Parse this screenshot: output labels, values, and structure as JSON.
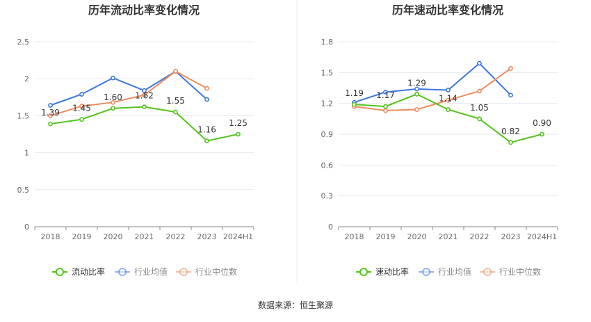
{
  "source_label": "数据来源：恒生聚源",
  "colors": {
    "series_main": "#52c41a",
    "series_avg": "#3b77e3",
    "series_median": "#f08a5d",
    "axis_text": "#666666",
    "grid": "#e6e9f0",
    "axis_line": "#888888",
    "divider": "#eeeeee"
  },
  "chart_data": [
    {
      "type": "line",
      "title": "历年流动比率变化情况",
      "categories": [
        "2018",
        "2019",
        "2020",
        "2021",
        "2022",
        "2023",
        "2024H1"
      ],
      "ylim": [
        0,
        2.5
      ],
      "yticks": [
        "0",
        "0.5",
        "1",
        "1.5",
        "2",
        "2.5"
      ],
      "yticks_values": [
        0,
        0.5,
        1,
        1.5,
        2,
        2.5
      ],
      "grid": true,
      "legend_position": "bottom",
      "series": [
        {
          "name": "流动比率",
          "values": [
            1.39,
            1.45,
            1.6,
            1.62,
            1.55,
            1.16,
            1.25
          ],
          "labels": [
            "1.39",
            "1.45",
            "1.60",
            "1.62",
            "1.55",
            "1.16",
            "1.25"
          ],
          "color_key": "series_main"
        },
        {
          "name": "行业均值",
          "values": [
            1.64,
            1.79,
            2.01,
            1.84,
            2.1,
            1.72,
            null
          ],
          "color_key": "series_avg"
        },
        {
          "name": "行业中位数",
          "values": [
            1.5,
            1.63,
            1.68,
            1.78,
            2.1,
            1.87,
            null
          ],
          "color_key": "series_median"
        }
      ]
    },
    {
      "type": "line",
      "title": "历年速动比率变化情况",
      "categories": [
        "2018",
        "2019",
        "2020",
        "2021",
        "2022",
        "2023",
        "2024H1"
      ],
      "ylim": [
        0,
        1.8
      ],
      "yticks": [
        "0",
        "0.3",
        "0.6",
        "0.9",
        "1.2",
        "1.5",
        "1.8"
      ],
      "yticks_values": [
        0,
        0.3,
        0.6,
        0.9,
        1.2,
        1.5,
        1.8
      ],
      "grid": true,
      "legend_position": "bottom",
      "series": [
        {
          "name": "速动比率",
          "values": [
            1.19,
            1.17,
            1.29,
            1.14,
            1.05,
            0.82,
            0.9
          ],
          "labels": [
            "1.19",
            "1.17",
            "1.29",
            "1.14",
            "1.05",
            "0.82",
            "0.90"
          ],
          "color_key": "series_main"
        },
        {
          "name": "行业均值",
          "values": [
            1.21,
            1.31,
            1.34,
            1.33,
            1.59,
            1.28,
            null
          ],
          "color_key": "series_avg"
        },
        {
          "name": "行业中位数",
          "values": [
            1.17,
            1.13,
            1.14,
            1.23,
            1.32,
            1.54,
            null
          ],
          "color_key": "series_median"
        }
      ]
    }
  ]
}
